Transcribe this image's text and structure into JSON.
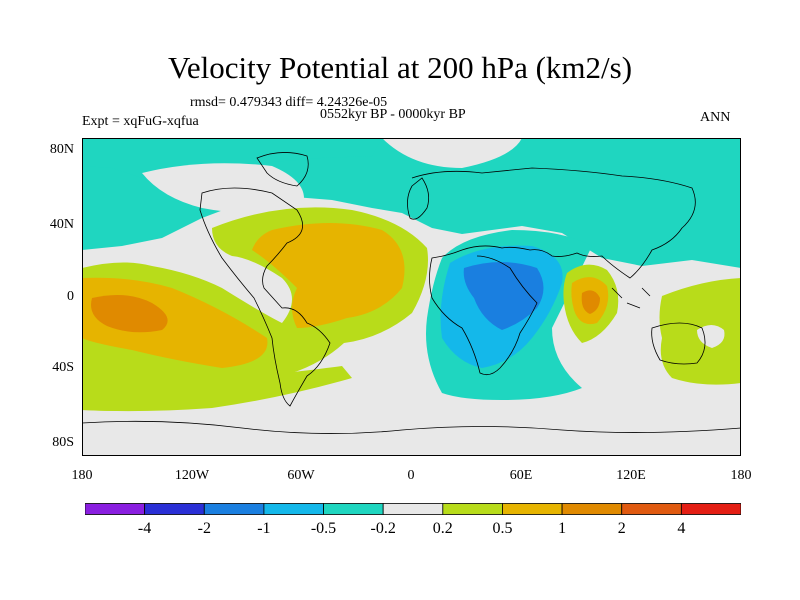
{
  "plot": {
    "title": "Velocity Potential at 200 hPa (km2/s)",
    "stats": "rmsd= 0.479343 diff= 4.24326e-05",
    "period": "0552kyr BP - 0000kyr BP",
    "experiment": "Expt = xqFuG-xqfua",
    "season": "ANN"
  },
  "axes": {
    "lat_ticks": [
      "80N",
      "40N",
      "0",
      "40S",
      "80S"
    ],
    "lon_ticks": [
      "180",
      "120W",
      "60W",
      "0",
      "60E",
      "120E",
      "180"
    ]
  },
  "colorbar": {
    "labels": [
      "-4",
      "-2",
      "-1",
      "-0.5",
      "-0.2",
      "0.2",
      "0.5",
      "1",
      "2",
      "4"
    ],
    "colors": [
      "#8a1fe0",
      "#2a2fd6",
      "#1a7fe0",
      "#14b8ea",
      "#1fd6c0",
      "#e8e8e8",
      "#b8dc1a",
      "#e6b400",
      "#e08a00",
      "#e05a10",
      "#e41e14"
    ]
  },
  "field_colors": {
    "neutral": "#e8e8e8",
    "weak_negative": "#1fd6c0",
    "moderate_negative": "#14b8ea",
    "strong_negative": "#1a7fe0",
    "weak_positive": "#b8dc1a",
    "moderate_positive": "#e6b400",
    "strong_positive": "#e08a00"
  }
}
